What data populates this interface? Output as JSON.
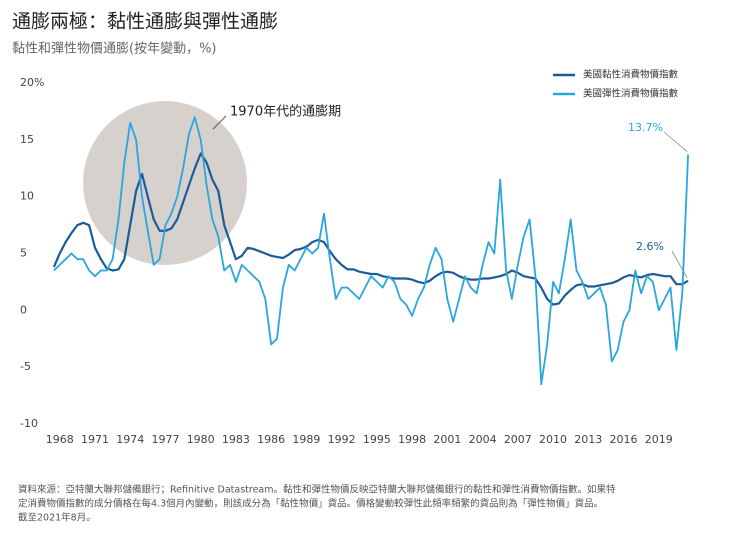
{
  "chart_data": {
    "type": "line",
    "title": "通膨兩極：黏性通膨與彈性通膨",
    "subtitle": "黏性和彈性物價通膨(按年變動，%)",
    "annotation": "1970年代的通膨期",
    "source": [
      "資料來源：亞特蘭大聯邦儲備銀行；Refinitive Datastream。黏性和彈性物價反映亞特蘭大聯邦儲備銀行的黏性和彈性消費物價指數。如果特",
      "定消費物價指數的成分價格在每4.3個月內變動，則該成分為「黏性物價」貨品。價格變動較彈性此頻率頻繁的貨品則為「彈性物價」貨品。",
      "截至2021年8月。"
    ],
    "xlim": [
      1967,
      2022
    ],
    "xticks": [
      1968,
      1971,
      1974,
      1977,
      1980,
      1983,
      1986,
      1989,
      1992,
      1995,
      1998,
      2001,
      2004,
      2007,
      2010,
      2013,
      2016,
      2019
    ],
    "ylim": [
      -10,
      20
    ],
    "yticks": [
      -10,
      -5,
      0,
      5,
      10,
      15,
      {
        "value": 20,
        "label": "20%"
      }
    ],
    "x": [
      1967.5,
      1968,
      1968.5,
      1969,
      1969.5,
      1970,
      1970.5,
      1971,
      1971.5,
      1972,
      1972.5,
      1973,
      1973.5,
      1974,
      1974.5,
      1975,
      1975.5,
      1976,
      1976.5,
      1977,
      1977.5,
      1978,
      1978.5,
      1979,
      1979.5,
      1980,
      1980.5,
      1981,
      1981.5,
      1982,
      1982.5,
      1983,
      1983.5,
      1984,
      1984.5,
      1985,
      1985.5,
      1986,
      1986.5,
      1987,
      1987.5,
      1988,
      1988.5,
      1989,
      1989.5,
      1990,
      1990.5,
      1991,
      1991.5,
      1992,
      1992.5,
      1993,
      1993.5,
      1994,
      1994.5,
      1995,
      1995.5,
      1996,
      1996.5,
      1997,
      1997.5,
      1998,
      1998.5,
      1999,
      1999.5,
      2000,
      2000.5,
      2001,
      2001.5,
      2002,
      2002.5,
      2003,
      2003.5,
      2004,
      2004.5,
      2005,
      2005.5,
      2006,
      2006.5,
      2007,
      2007.5,
      2008,
      2008.5,
      2009,
      2009.5,
      2010,
      2010.5,
      2011,
      2011.5,
      2012,
      2012.5,
      2013,
      2013.5,
      2014,
      2014.5,
      2015,
      2015.5,
      2016,
      2016.5,
      2017,
      2017.5,
      2018,
      2018.5,
      2019,
      2019.5,
      2020,
      2020.5,
      2021,
      2021.5
    ],
    "series": [
      {
        "name": "美國黏性消費物價指數",
        "color": "#1c5b99",
        "end_label": "2.6%",
        "values": [
          3.8,
          5.0,
          6.0,
          6.8,
          7.5,
          7.7,
          7.5,
          5.5,
          4.5,
          3.7,
          3.5,
          3.6,
          4.5,
          7.5,
          10.5,
          12.0,
          10.0,
          8.0,
          7.0,
          7.0,
          7.2,
          8.0,
          9.5,
          11.0,
          12.5,
          13.8,
          13.0,
          11.5,
          10.5,
          7.5,
          6.0,
          4.5,
          4.8,
          5.5,
          5.4,
          5.2,
          5.0,
          4.8,
          4.7,
          4.6,
          4.9,
          5.3,
          5.4,
          5.6,
          6.0,
          6.2,
          6.0,
          5.2,
          4.5,
          4.0,
          3.6,
          3.6,
          3.4,
          3.3,
          3.2,
          3.2,
          3.0,
          2.9,
          2.8,
          2.8,
          2.8,
          2.7,
          2.5,
          2.4,
          2.6,
          3.0,
          3.3,
          3.4,
          3.3,
          3.0,
          2.8,
          2.7,
          2.7,
          2.8,
          2.8,
          2.9,
          3.0,
          3.2,
          3.5,
          3.3,
          3.0,
          2.9,
          2.8,
          2.0,
          1.0,
          0.5,
          0.6,
          1.3,
          1.8,
          2.2,
          2.3,
          2.1,
          2.1,
          2.2,
          2.3,
          2.4,
          2.6,
          2.9,
          3.1,
          3.0,
          2.9,
          3.1,
          3.2,
          3.1,
          3.0,
          3.0,
          2.3,
          2.3,
          2.6
        ]
      },
      {
        "name": "美國彈性消費物價指數",
        "color": "#2aa6de",
        "end_label": "13.7%",
        "values": [
          3.5,
          4.0,
          4.5,
          5.0,
          4.5,
          4.5,
          3.5,
          3.0,
          3.5,
          3.5,
          4.5,
          8.0,
          13.0,
          16.5,
          15.0,
          10.0,
          7.0,
          4.0,
          4.5,
          7.5,
          8.5,
          10.0,
          12.5,
          15.5,
          17.0,
          15.0,
          11.0,
          8.0,
          6.5,
          3.5,
          4.0,
          2.5,
          4.0,
          3.5,
          3.0,
          2.5,
          1.0,
          -3.0,
          -2.5,
          2.0,
          4.0,
          3.5,
          4.5,
          5.5,
          5.0,
          5.5,
          8.5,
          4.5,
          1.0,
          2.0,
          2.0,
          1.5,
          1.0,
          2.0,
          3.0,
          2.5,
          2.0,
          3.0,
          2.5,
          1.0,
          0.5,
          -0.5,
          1.0,
          2.0,
          4.0,
          5.5,
          4.5,
          1.0,
          -1.0,
          1.0,
          3.0,
          2.0,
          1.5,
          4.0,
          6.0,
          5.0,
          11.5,
          3.5,
          1.0,
          4.0,
          6.5,
          8.0,
          3.0,
          -6.5,
          -3.0,
          2.5,
          1.5,
          4.5,
          8.0,
          3.5,
          2.5,
          1.0,
          1.5,
          2.0,
          0.5,
          -4.5,
          -3.5,
          -1.0,
          0.0,
          3.5,
          1.5,
          3.0,
          2.5,
          0.0,
          1.0,
          2.0,
          -3.5,
          1.5,
          13.7
        ]
      }
    ]
  }
}
